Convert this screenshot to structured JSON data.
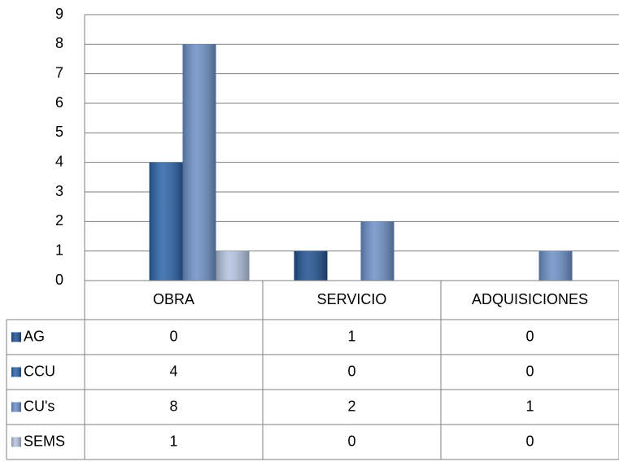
{
  "chart_data": {
    "type": "bar",
    "categories": [
      "OBRA",
      "SERVICIO",
      "ADQUISICIONES"
    ],
    "series": [
      {
        "name": "AG",
        "color": "#1f4f8f",
        "values": [
          0,
          1,
          0
        ]
      },
      {
        "name": "CCU",
        "color": "#2a62a8",
        "values": [
          4,
          0,
          0
        ]
      },
      {
        "name": "CU's",
        "color": "#6b8fc6",
        "values": [
          8,
          2,
          1
        ]
      },
      {
        "name": "SEMS",
        "color": "#b3c3df",
        "values": [
          1,
          0,
          0
        ]
      }
    ],
    "ylim": [
      0,
      9
    ],
    "yticks": [
      0,
      1,
      2,
      3,
      4,
      5,
      6,
      7,
      8,
      9
    ],
    "grid": true,
    "data_table": true
  }
}
